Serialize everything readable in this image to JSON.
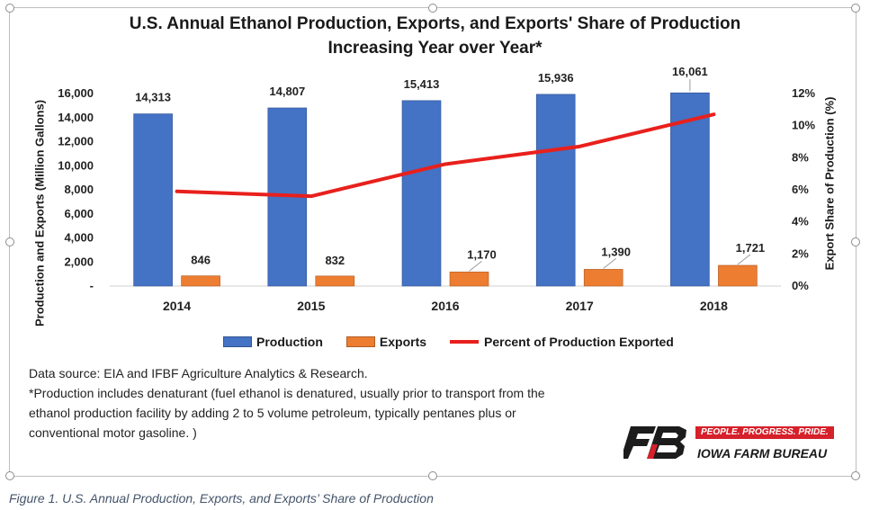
{
  "chart_data": {
    "type": "bar",
    "title_line1": "U.S. Annual Ethanol Production, Exports, and Exports' Share of Production",
    "title_line2": "Increasing Year over Year*",
    "ylabel": "Production and Exports (Million Gallons)",
    "y2label": "Export Share of Production (%)",
    "categories": [
      "2014",
      "2015",
      "2016",
      "2017",
      "2018"
    ],
    "ylim": [
      0,
      16000
    ],
    "y_ticks": [
      "-",
      "2,000",
      "4,000",
      "6,000",
      "8,000",
      "10,000",
      "12,000",
      "14,000",
      "16,000"
    ],
    "y2lim": [
      0,
      12
    ],
    "y2_ticks": [
      "0%",
      "2%",
      "4%",
      "6%",
      "8%",
      "10%",
      "12%"
    ],
    "series": [
      {
        "name": "Production",
        "kind": "bar",
        "color": "#4472c4",
        "values": [
          14313,
          14807,
          15413,
          15936,
          16061
        ],
        "labels": [
          "14,313",
          "14,807",
          "15,413",
          "15,936",
          "16,061"
        ]
      },
      {
        "name": "Exports",
        "kind": "bar",
        "color": "#ed7d31",
        "values": [
          846,
          832,
          1170,
          1390,
          1721
        ],
        "labels": [
          "846",
          "832",
          "1,170",
          "1,390",
          "1,721"
        ]
      },
      {
        "name": "Percent of Production Exported",
        "kind": "line",
        "axis": "secondary",
        "color": "#e8201c",
        "values": [
          5.9,
          5.6,
          7.6,
          8.7,
          10.7
        ]
      }
    ],
    "legend_position": "bottom",
    "grid": false
  },
  "notes": {
    "line1": "Data source: EIA and IFBF Agriculture Analytics & Research.",
    "line2": "*Production includes denaturant (fuel ethanol is denatured, usually prior to transport from the",
    "line3": "ethanol production facility by adding 2 to 5 volume petroleum, typically pentanes plus or",
    "line4": "conventional motor gasoline. )"
  },
  "logo": {
    "tagline": "PEOPLE. PROGRESS. PRIDE.",
    "name": "IOWA FARM BUREAU"
  },
  "caption": "Figure 1. U.S. Annual Production, Exports, and Exports’ Share of Production"
}
